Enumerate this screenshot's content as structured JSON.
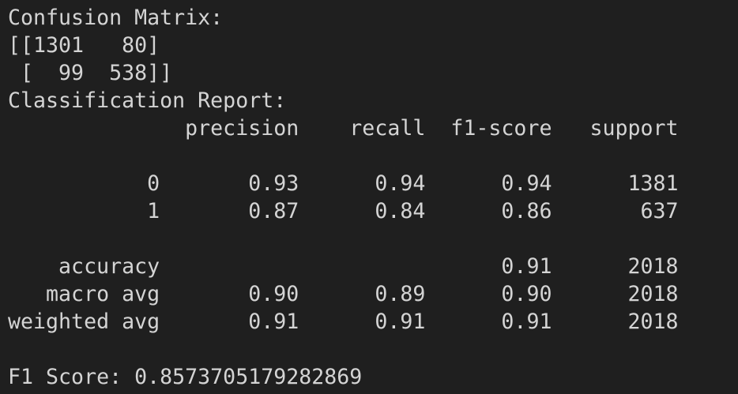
{
  "terminal": {
    "lines": [
      "Confusion Matrix:",
      "[[1301   80]",
      " [  99  538]]",
      "Classification Report:",
      "              precision    recall  f1-score   support",
      "",
      "           0       0.93      0.94      0.94      1381",
      "           1       0.87      0.84      0.86       637",
      "",
      "    accuracy                           0.91      2018",
      "   macro avg       0.90      0.89      0.90      2018",
      "weighted avg       0.91      0.91      0.91      2018",
      "",
      "F1 Score: 0.8573705179282869"
    ]
  },
  "colors": {
    "background": "#1f1f1f",
    "text": "#d4d4d4"
  }
}
